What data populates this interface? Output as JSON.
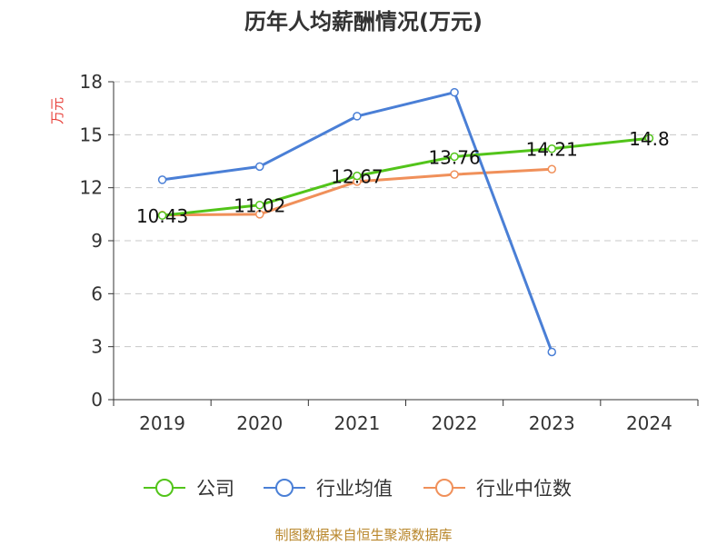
{
  "chart_data": {
    "type": "line",
    "title": "历年人均薪酬情况(万元)",
    "ylabel": "万元",
    "xlabel": "",
    "categories": [
      "2019",
      "2020",
      "2021",
      "2022",
      "2023",
      "2024"
    ],
    "ylim": [
      0,
      18
    ],
    "yticks": [
      0,
      3,
      6,
      9,
      12,
      15,
      18
    ],
    "grid": true,
    "legend_position": "bottom",
    "series": [
      {
        "name": "公司",
        "color": "#52c41a",
        "values": [
          10.43,
          11.02,
          12.67,
          13.76,
          14.21,
          14.8
        ],
        "labels": [
          "10.43",
          "11.02",
          "12.67",
          "13.76",
          "14.21",
          "14.8"
        ]
      },
      {
        "name": "行业均值",
        "color": "#4a7fd6",
        "values": [
          12.45,
          13.2,
          16.05,
          17.4,
          2.7,
          null
        ]
      },
      {
        "name": "行业中位数",
        "color": "#f0905a",
        "values": [
          10.45,
          10.5,
          12.35,
          12.75,
          13.05,
          null
        ]
      }
    ]
  },
  "footer": {
    "source": "制图数据来自恒生聚源数据库"
  }
}
